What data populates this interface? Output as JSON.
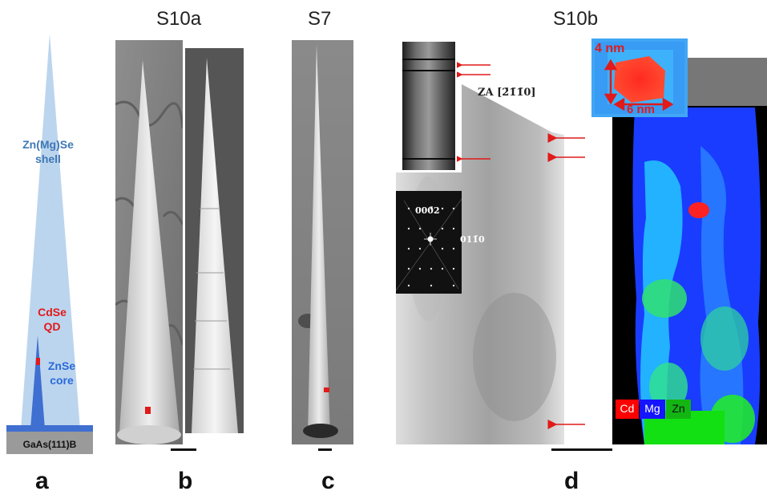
{
  "samples": {
    "s10a": "S10a",
    "s7": "S7",
    "s10b": "S10b"
  },
  "panel_labels": {
    "a": "a",
    "b": "b",
    "c": "c",
    "d": "d"
  },
  "schematic": {
    "shell_line1": "Zn(Mg)Se",
    "shell_line2": "shell",
    "qd_line1": "CdSe",
    "qd_line2": "QD",
    "core_line1": "ZnSe",
    "core_line2": "core",
    "substrate": "GaAs(111)B"
  },
  "tem": {
    "zone_axis": "ZA [2̄1̄1̄0]",
    "diffraction_spot_1": "000̄2",
    "diffraction_spot_2": "011̄0"
  },
  "edx": {
    "height_label": "4 nm",
    "width_label": "6 nm",
    "legend": [
      "Cd",
      "Mg",
      "Zn"
    ]
  },
  "colors": {
    "shell": "#bcd5ee",
    "core": "#3f6fd0",
    "qd": "#e11a1a",
    "substrate_top": "#3f6fd0",
    "substrate": "#9a9a9a",
    "arrow": "#e11a1a",
    "legend_cd": "#ff0000",
    "legend_mg": "#1414ff",
    "legend_zn": "#13b513"
  }
}
